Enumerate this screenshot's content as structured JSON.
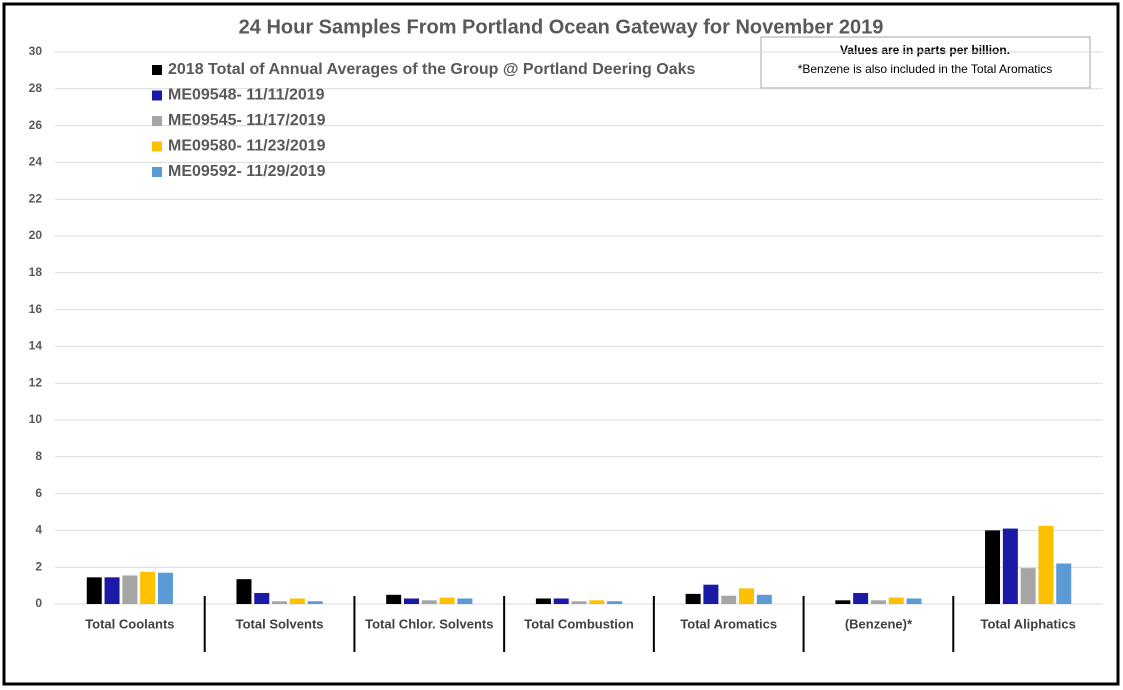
{
  "chart_data": {
    "type": "bar",
    "title": "24 Hour Samples From Portland Ocean Gateway for November 2019",
    "annotations": [
      "Values are in parts per billion.",
      "*Benzene is also included in the Total Aromatics"
    ],
    "categories": [
      "Total Coolants",
      "Total Solvents",
      "Total Chlor. Solvents",
      "Total Combustion",
      "Total Aromatics",
      "(Benzene)*",
      "Total Aliphatics"
    ],
    "series": [
      {
        "name": "2018 Total of Annual Averages of the Group @ Portland Deering Oaks",
        "color": "#000000",
        "values": [
          1.45,
          1.35,
          0.5,
          0.3,
          0.55,
          0.2,
          4.0
        ]
      },
      {
        "name": "ME09548- 11/11/2019",
        "color": "#1a1aa6",
        "values": [
          1.45,
          0.6,
          0.3,
          0.3,
          1.05,
          0.6,
          4.1
        ]
      },
      {
        "name": "ME09545- 11/17/2019",
        "color": "#a5a5a5",
        "values": [
          1.55,
          0.15,
          0.2,
          0.15,
          0.45,
          0.2,
          1.95
        ]
      },
      {
        "name": "ME09580- 11/23/2019",
        "color": "#ffc000",
        "values": [
          1.75,
          0.3,
          0.35,
          0.2,
          0.85,
          0.35,
          4.25
        ]
      },
      {
        "name": "ME09592- 11/29/2019",
        "color": "#5b9bd5",
        "values": [
          1.7,
          0.15,
          0.3,
          0.15,
          0.5,
          0.3,
          2.2
        ]
      }
    ],
    "ylim": [
      0,
      30
    ],
    "yticks": [
      0,
      2,
      4,
      6,
      8,
      10,
      12,
      14,
      16,
      18,
      20,
      22,
      24,
      26,
      28,
      30
    ],
    "grid": true
  }
}
